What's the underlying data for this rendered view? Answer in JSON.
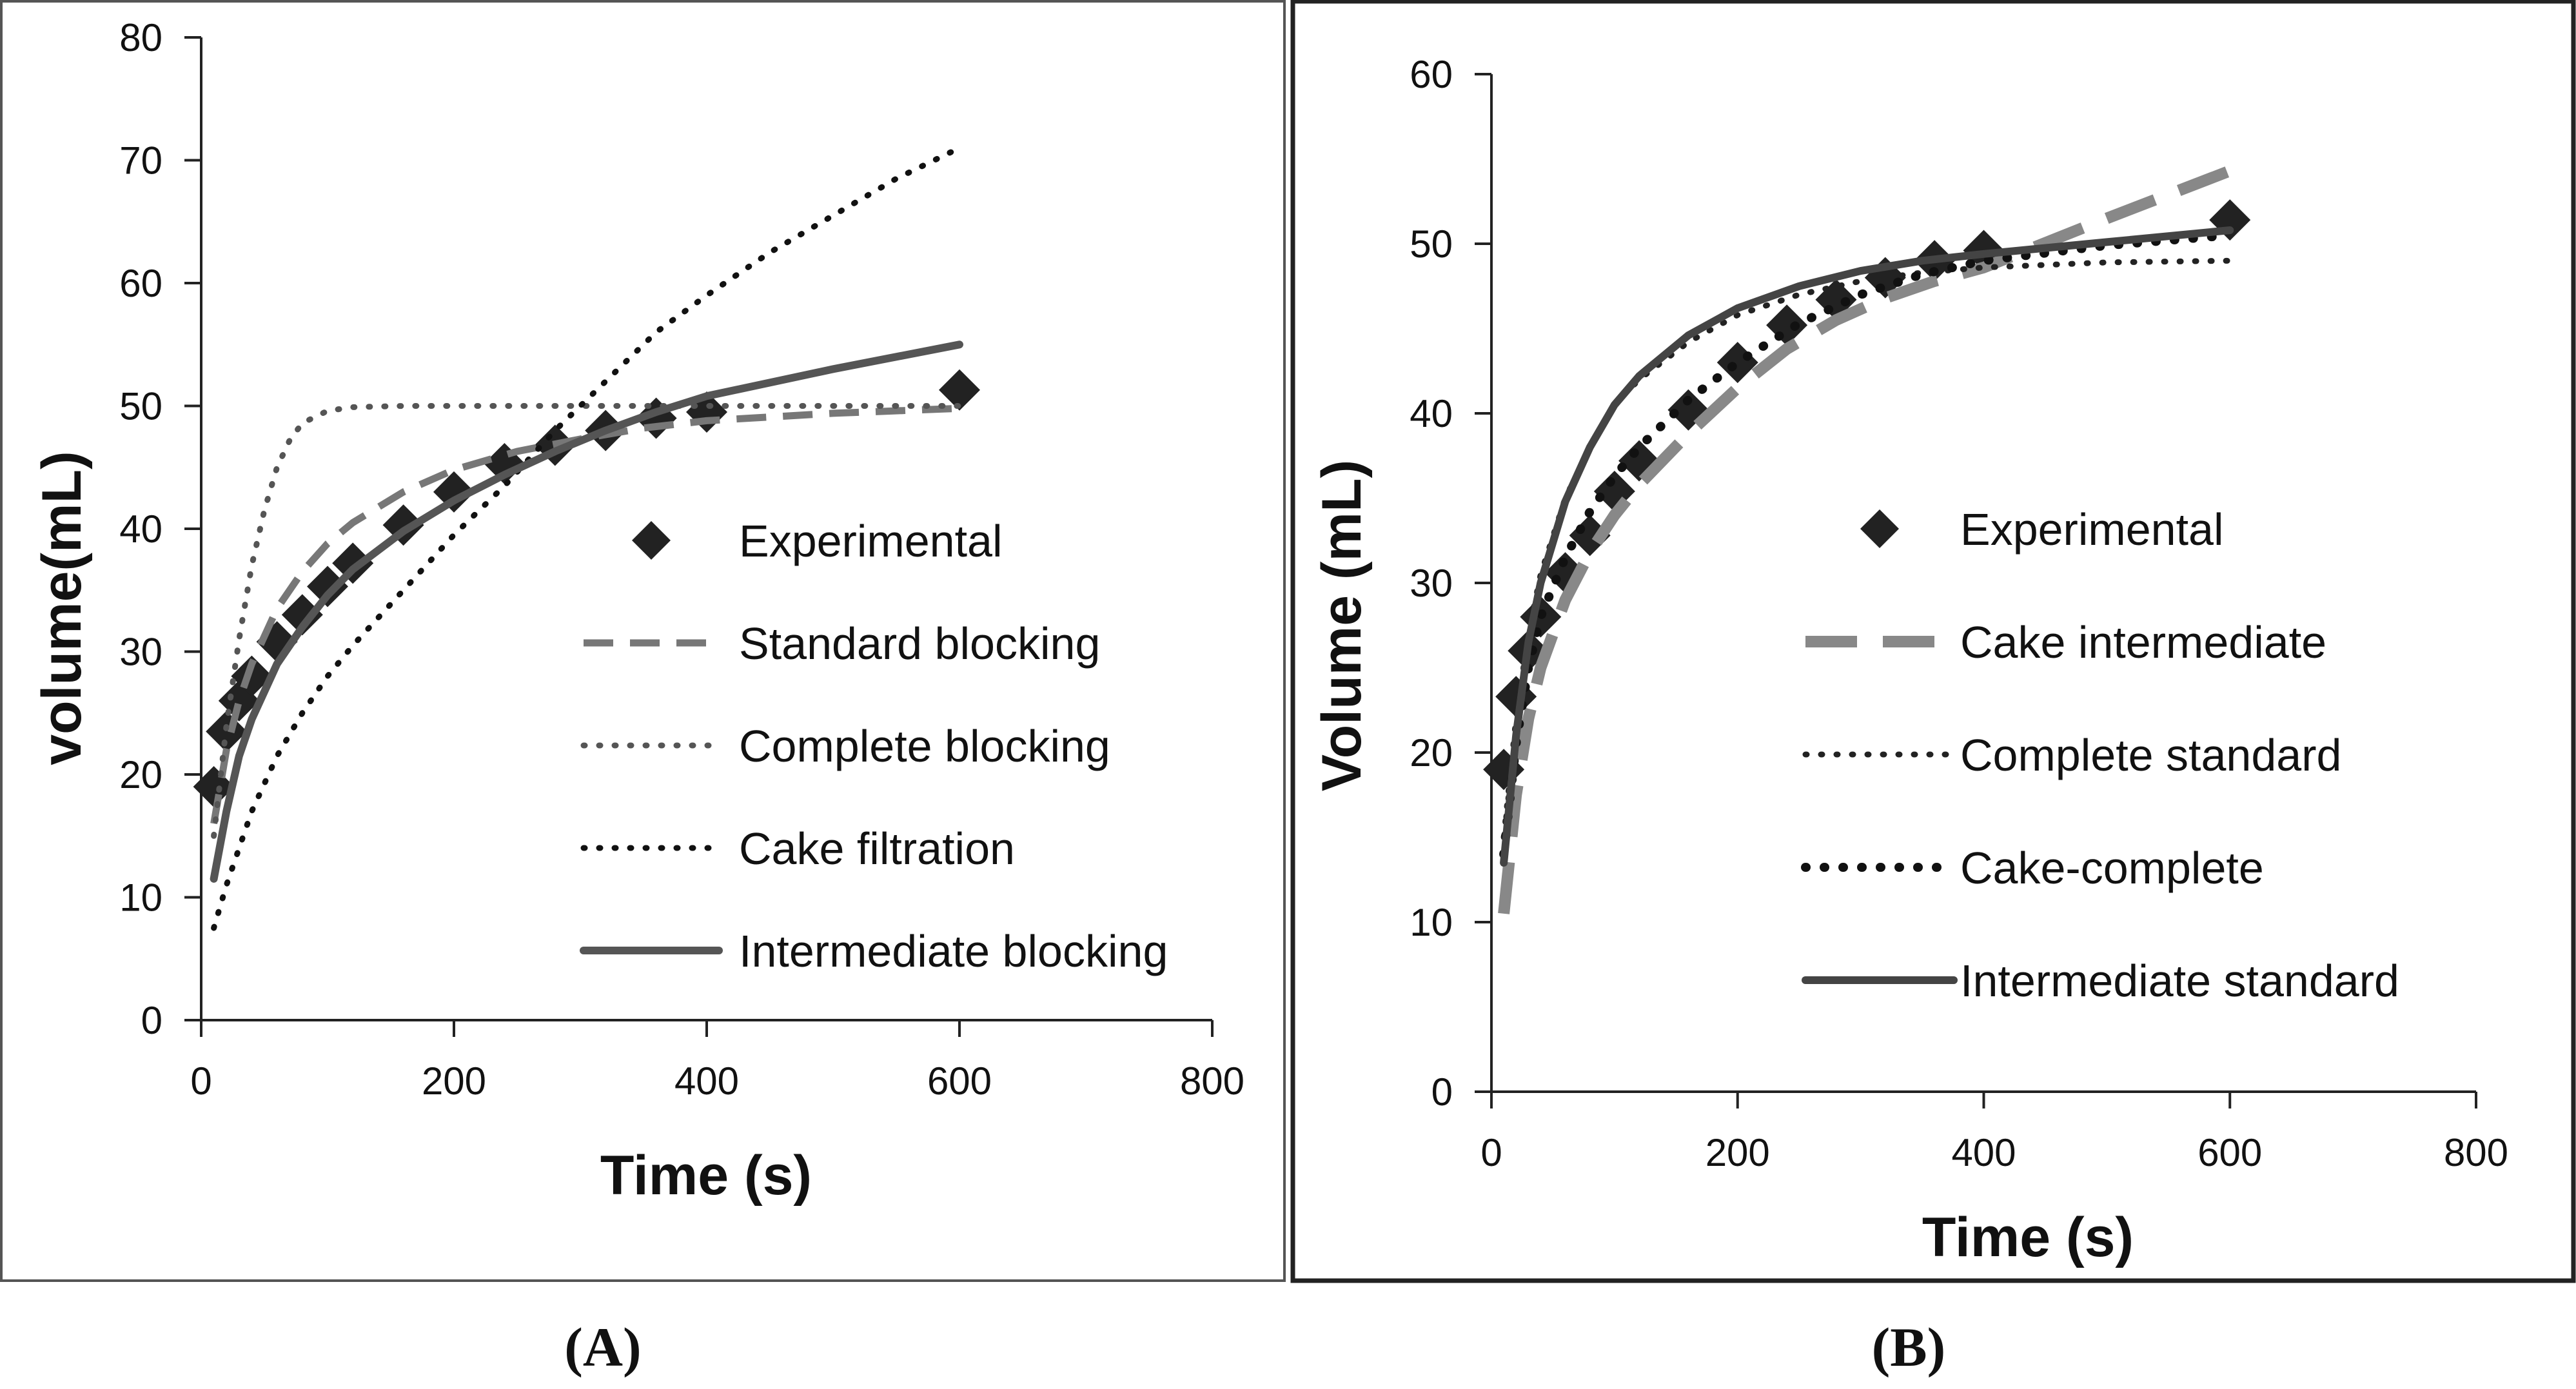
{
  "chart_data": [
    {
      "type": "line",
      "caption": "(A)",
      "xlabel": "Time (s)",
      "ylabel": "volume(mL)",
      "xlim": [
        0,
        800
      ],
      "ylim": [
        0,
        80
      ],
      "xticks": [
        "0",
        "200",
        "400",
        "600",
        "800"
      ],
      "yticks": [
        "0",
        "10",
        "20",
        "30",
        "40",
        "50",
        "60",
        "70",
        "80"
      ],
      "legend": "center-right",
      "series": [
        {
          "name": "Experimental",
          "style": "marker",
          "color": "#222222",
          "x": [
            10,
            20,
            30,
            40,
            60,
            80,
            100,
            120,
            160,
            200,
            240,
            280,
            320,
            360,
            400,
            600
          ],
          "y": [
            19.0,
            23.5,
            26.0,
            28.0,
            30.8,
            33.0,
            35.3,
            37.2,
            40.3,
            43.0,
            45.3,
            46.8,
            48.0,
            49.0,
            49.5,
            51.3
          ]
        },
        {
          "name": "Standard blocking",
          "style": "dashed",
          "color": "#777777",
          "x": [
            10,
            20,
            30,
            40,
            60,
            80,
            100,
            120,
            160,
            200,
            250,
            300,
            350,
            400,
            500,
            600
          ],
          "y": [
            16.0,
            22.0,
            26.0,
            29.0,
            33.5,
            36.5,
            38.8,
            40.5,
            43.0,
            44.8,
            46.3,
            47.3,
            48.2,
            48.8,
            49.4,
            49.8
          ]
        },
        {
          "name": "Complete blocking",
          "style": "dotted",
          "color": "#555555",
          "x": [
            10,
            20,
            30,
            40,
            50,
            60,
            70,
            80,
            100,
            120,
            160,
            200,
            300,
            400,
            600
          ],
          "y": [
            15.0,
            24.0,
            31.0,
            37.0,
            41.5,
            45.0,
            47.2,
            48.6,
            49.6,
            49.9,
            50.0,
            50.0,
            50.0,
            50.0,
            50.0
          ]
        },
        {
          "name": "Cake filtration",
          "style": "dotted",
          "color": "#111111",
          "x": [
            10,
            20,
            40,
            60,
            80,
            100,
            120,
            160,
            200,
            240,
            280,
            320,
            360,
            400,
            450,
            500,
            550,
            600
          ],
          "y": [
            7.5,
            11.0,
            17.0,
            21.5,
            25.0,
            28.0,
            30.5,
            35.0,
            39.5,
            43.5,
            48.0,
            52.0,
            56.0,
            59.0,
            62.5,
            65.5,
            68.5,
            71.0
          ]
        },
        {
          "name": "Intermediate blocking",
          "style": "solid",
          "color": "#555555",
          "x": [
            10,
            20,
            30,
            40,
            60,
            80,
            100,
            120,
            160,
            200,
            240,
            280,
            320,
            360,
            400,
            500,
            600
          ],
          "y": [
            11.5,
            17.0,
            21.5,
            24.5,
            29.0,
            32.0,
            34.6,
            36.7,
            39.8,
            42.3,
            44.4,
            46.3,
            48.0,
            49.5,
            50.8,
            53.0,
            55.0
          ]
        }
      ]
    },
    {
      "type": "line",
      "caption": "(B)",
      "xlabel": "Time (s)",
      "ylabel": "Volume (mL)",
      "xlim": [
        0,
        800
      ],
      "ylim": [
        0,
        60
      ],
      "xticks": [
        "0",
        "200",
        "400",
        "600",
        "800"
      ],
      "yticks": [
        "0",
        "10",
        "20",
        "30",
        "40",
        "50",
        "60"
      ],
      "legend": "center-right",
      "series": [
        {
          "name": "Experimental",
          "style": "marker",
          "color": "#222222",
          "x": [
            10,
            20,
            30,
            40,
            60,
            80,
            100,
            120,
            160,
            200,
            240,
            280,
            320,
            360,
            400,
            600
          ],
          "y": [
            19.0,
            23.3,
            26.0,
            28.0,
            30.6,
            32.8,
            35.4,
            37.2,
            40.2,
            43.0,
            45.2,
            46.7,
            48.0,
            49.0,
            49.6,
            51.4
          ]
        },
        {
          "name": "Cake intermediate",
          "style": "longdash",
          "color": "#888888",
          "x": [
            10,
            20,
            30,
            40,
            60,
            80,
            100,
            120,
            160,
            200,
            240,
            280,
            320,
            360,
            400,
            500,
            600
          ],
          "y": [
            10.5,
            17.5,
            22.0,
            25.0,
            29.0,
            31.8,
            34.0,
            35.8,
            38.8,
            41.5,
            43.8,
            45.5,
            46.8,
            47.8,
            48.6,
            51.5,
            54.3
          ]
        },
        {
          "name": "Complete standard",
          "style": "dotted",
          "color": "#222222",
          "x": [
            10,
            20,
            30,
            40,
            60,
            80,
            100,
            120,
            160,
            200,
            250,
            300,
            350,
            400,
            500,
            600
          ],
          "y": [
            15.0,
            22.0,
            27.0,
            30.5,
            35.0,
            38.0,
            40.5,
            42.0,
            44.2,
            45.8,
            47.0,
            47.8,
            48.3,
            48.6,
            48.9,
            49.0
          ]
        },
        {
          "name": "Cake-complete",
          "style": "dotted-bold",
          "color": "#111111",
          "x": [
            10,
            20,
            30,
            40,
            60,
            80,
            100,
            120,
            160,
            200,
            250,
            300,
            350,
            400,
            500,
            600
          ],
          "y": [
            14.0,
            20.5,
            25.0,
            28.0,
            31.5,
            34.2,
            36.3,
            38.0,
            40.8,
            43.0,
            45.3,
            47.0,
            48.2,
            49.0,
            49.9,
            50.5
          ]
        },
        {
          "name": "Intermediate standard",
          "style": "solid",
          "color": "#444444",
          "x": [
            10,
            20,
            30,
            40,
            60,
            80,
            100,
            120,
            160,
            200,
            250,
            300,
            350,
            400,
            500,
            600
          ],
          "y": [
            13.5,
            21.0,
            26.5,
            30.0,
            34.8,
            38.0,
            40.5,
            42.2,
            44.6,
            46.2,
            47.5,
            48.4,
            49.0,
            49.4,
            50.1,
            50.8
          ]
        }
      ]
    }
  ]
}
